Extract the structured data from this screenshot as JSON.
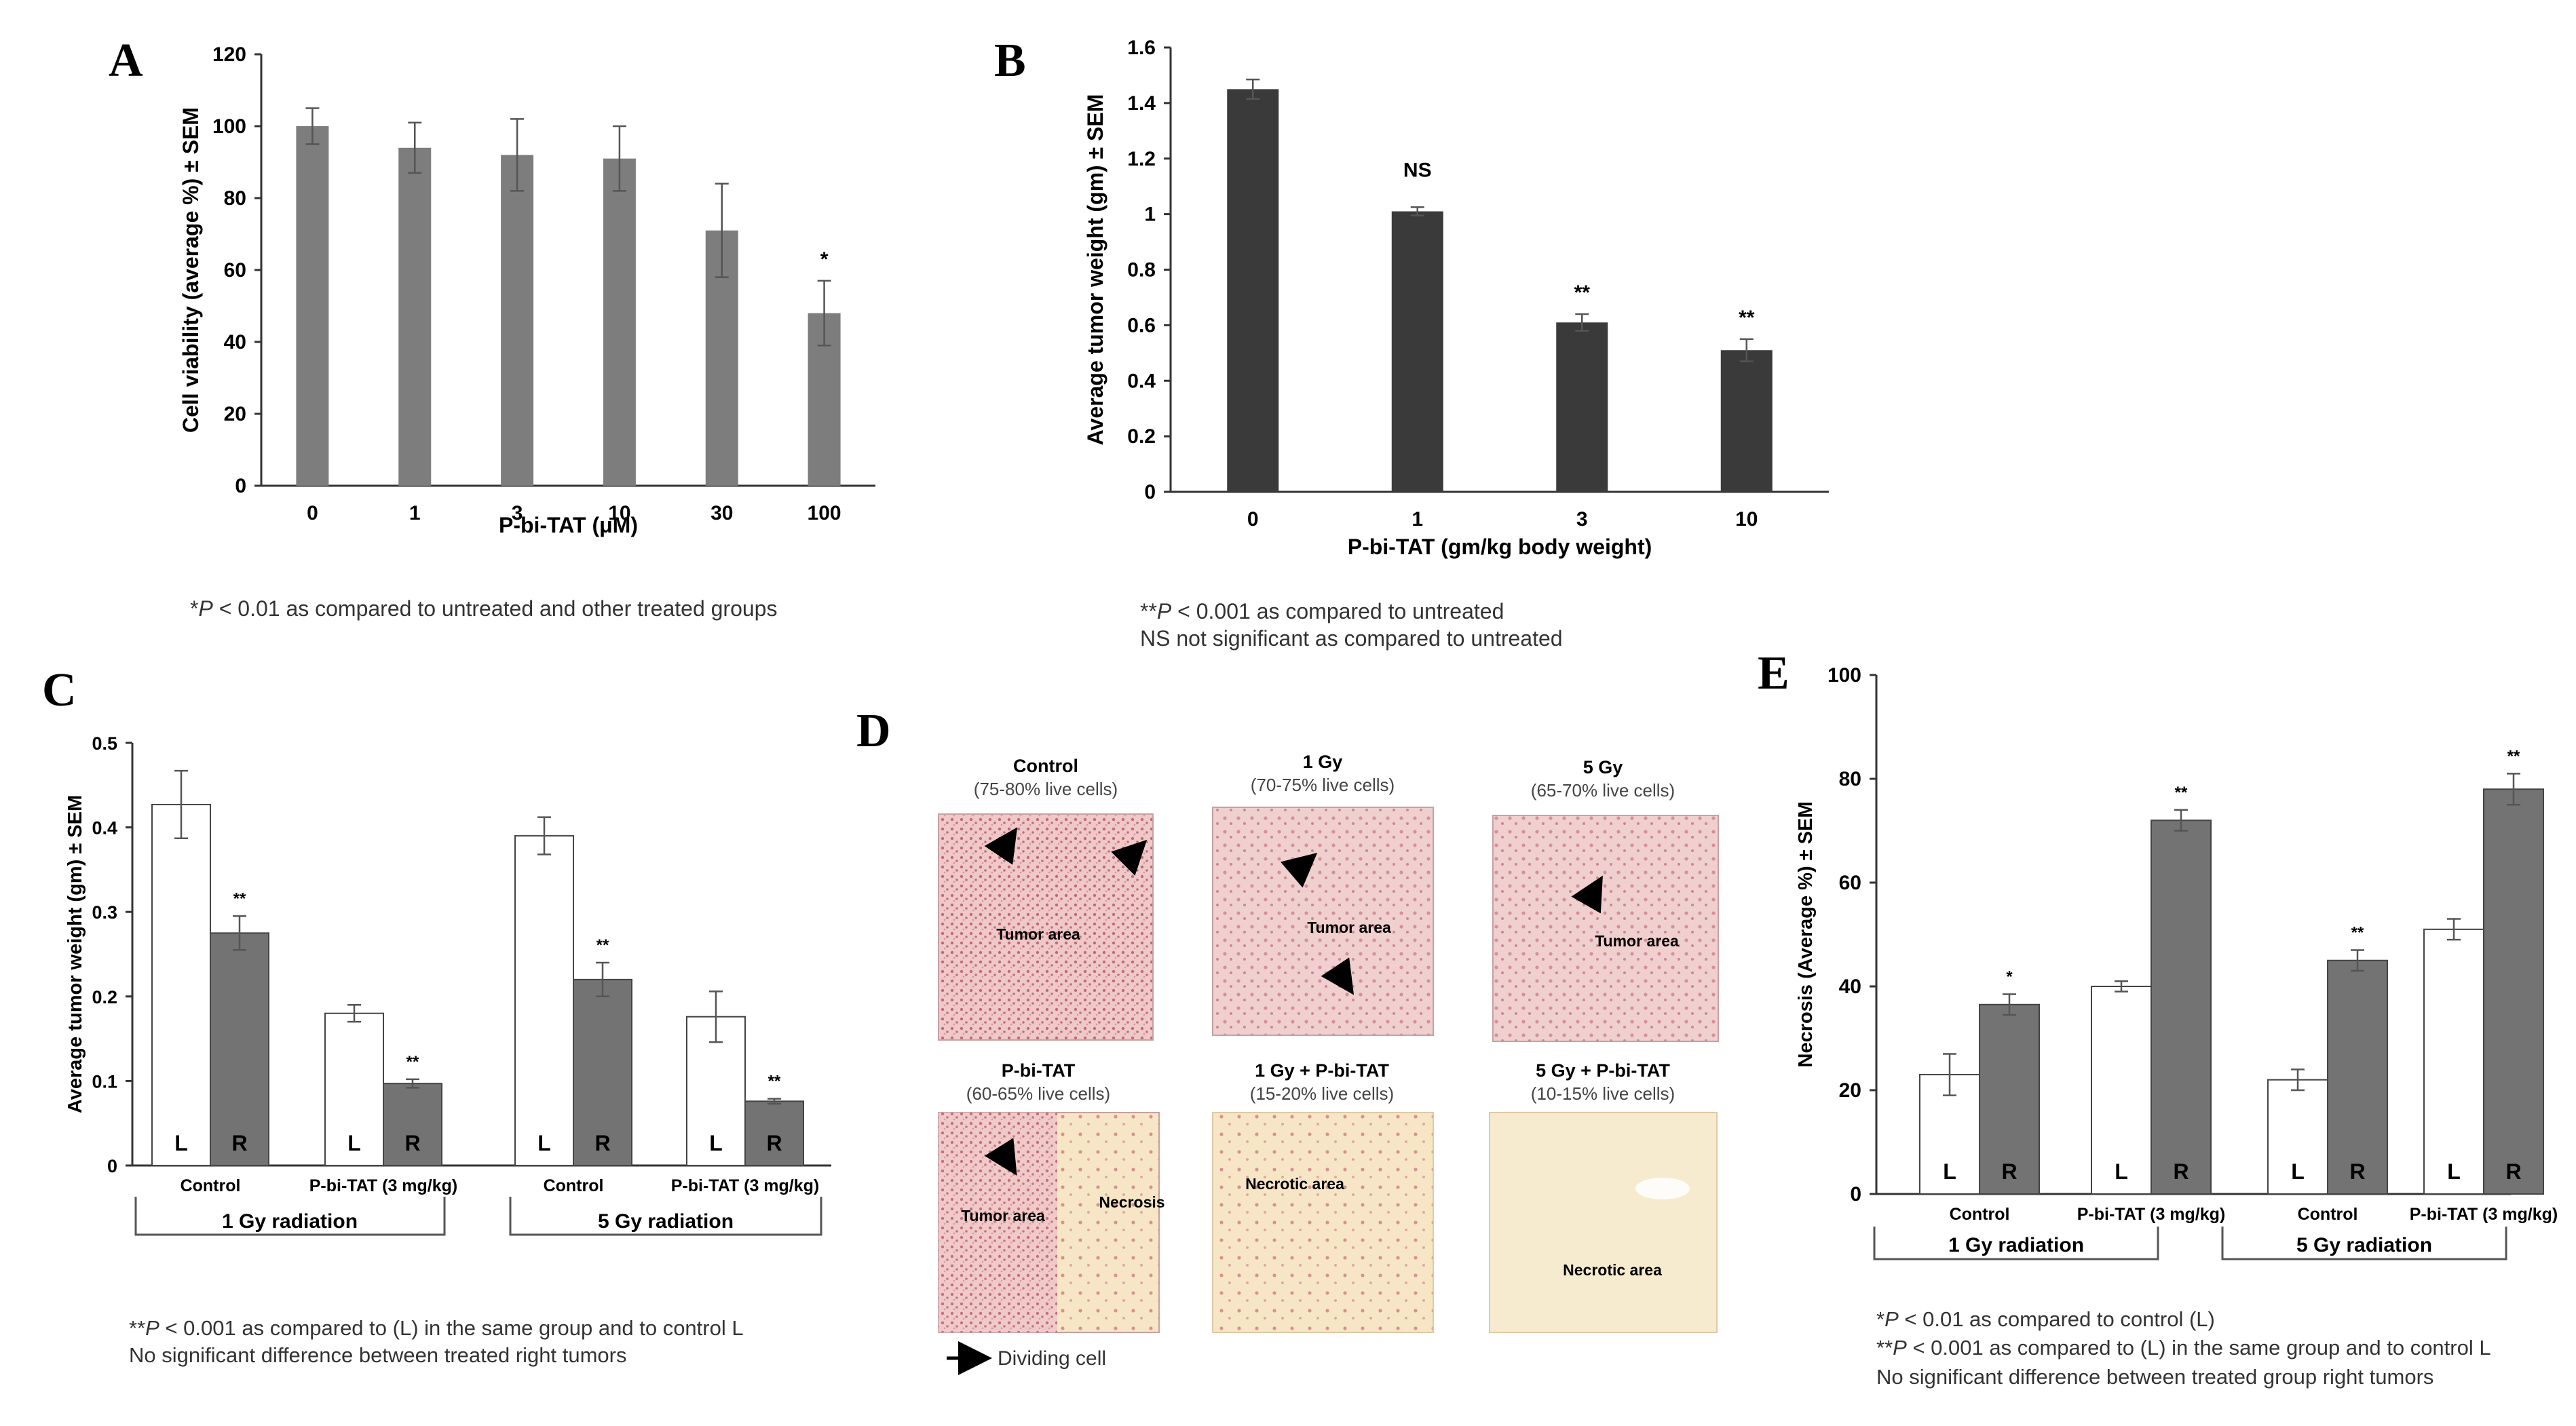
{
  "colors": {
    "panelA": "#7d7d7d",
    "panelB": "#3a3a3a",
    "left_bar": "#ffffff",
    "right_bar": "#737373",
    "axis": "#333333",
    "tissue_bg": "#efc9c9",
    "tissue_pale": "#f6e4c4"
  },
  "panels": {
    "A": {
      "letter": "A",
      "footnote_star": "*",
      "footnote_p": "P",
      "footnote_rest": " < 0.01 as compared to untreated and other treated groups"
    },
    "B": {
      "letter": "B",
      "footnote1_star": "**",
      "footnote1_p": "P",
      "footnote1_rest": " < 0.001 as compared to untreated",
      "footnote2": "NS not significant as compared to untreated"
    },
    "C": {
      "letter": "C",
      "group1": "1 Gy radiation",
      "group2": "5 Gy radiation",
      "footnote1_star": "**",
      "footnote1_p": "P",
      "footnote1_rest": " < 0.001 as compared to (L) in the same group and to control L",
      "footnote2": "No significant difference between treated right tumors"
    },
    "D": {
      "letter": "D",
      "legend": "Dividing cell",
      "images": [
        {
          "title": "Control",
          "subtitle": "(75-80% live cells)",
          "labels": [
            "Tumor area"
          ]
        },
        {
          "title": "1 Gy",
          "subtitle": "(70-75% live cells)",
          "labels": [
            "Tumor area"
          ]
        },
        {
          "title": "5 Gy",
          "subtitle": "(65-70% live cells)",
          "labels": [
            "Tumor area"
          ]
        },
        {
          "title": "P-bi-TAT",
          "subtitle": "(60-65% live cells)",
          "labels": [
            "Tumor area",
            "Necrosis"
          ]
        },
        {
          "title": "1 Gy + P-bi-TAT",
          "subtitle": "(15-20% live cells)",
          "labels": [
            "Necrotic area"
          ]
        },
        {
          "title": "5 Gy + P-bi-TAT",
          "subtitle": "(10-15% live cells)",
          "labels": [
            "Necrotic area"
          ]
        }
      ]
    },
    "E": {
      "letter": "E",
      "group1": "1 Gy radiation",
      "group2": "5 Gy radiation",
      "footnote1_star": "*",
      "footnote1_p": "P",
      "footnote1_rest": " < 0.01 as compared to control (L)",
      "footnote2_star": "**",
      "footnote2_p": "P",
      "footnote2_rest": " < 0.001 as compared to (L) in the same group and to control L",
      "footnote3": "No significant difference between treated group right tumors"
    }
  },
  "chart_data": [
    {
      "id": "A",
      "type": "bar",
      "xlabel": "P-bi-TAT (μM)",
      "ylabel": "Cell viability (average %) ± SEM",
      "categories": [
        "0",
        "1",
        "3",
        "10",
        "30",
        "100"
      ],
      "values": [
        100,
        94,
        92,
        91,
        71,
        48
      ],
      "errors": [
        5,
        7,
        10,
        9,
        13,
        9
      ],
      "annotations": [
        "",
        "",
        "",
        "",
        "",
        "*"
      ],
      "ylim": [
        0,
        120
      ],
      "yticks": [
        "0",
        "20",
        "40",
        "60",
        "80",
        "100",
        "120"
      ]
    },
    {
      "id": "B",
      "type": "bar",
      "xlabel": "P-bi-TAT (gm/kg body weight)",
      "ylabel": "Average tumor weight (gm) ± SEM",
      "categories": [
        "0",
        "1",
        "3",
        "10"
      ],
      "values": [
        1.45,
        1.01,
        0.61,
        0.51
      ],
      "errors": [
        0.035,
        0.015,
        0.03,
        0.04
      ],
      "annotations": [
        "",
        "NS",
        "**",
        "**"
      ],
      "ylim": [
        0,
        1.6
      ],
      "yticks": [
        "0",
        "0.2",
        "0.4",
        "0.6",
        "0.8",
        "1",
        "1.2",
        "1.4",
        "1.6"
      ]
    },
    {
      "id": "C",
      "type": "bar",
      "ylabel": "Average tumor weight (gm) ± SEM",
      "categories": [
        "Control",
        "P-bi-TAT (3 mg/kg)",
        "Control",
        "P-bi-TAT (3 mg/kg)"
      ],
      "series": [
        {
          "name": "L",
          "values": [
            0.427,
            0.18,
            0.39,
            0.176
          ],
          "errors": [
            0.04,
            0.01,
            0.022,
            0.03
          ],
          "annotations": [
            "",
            "",
            "",
            ""
          ]
        },
        {
          "name": "R",
          "values": [
            0.275,
            0.097,
            0.22,
            0.076
          ],
          "errors": [
            0.02,
            0.005,
            0.02,
            0.003
          ],
          "annotations": [
            "**",
            "**",
            "**",
            "**"
          ]
        }
      ],
      "ylim": [
        0,
        0.5
      ],
      "yticks": [
        "0",
        "0.1",
        "0.2",
        "0.3",
        "0.4",
        "0.5"
      ]
    },
    {
      "id": "E",
      "type": "bar",
      "ylabel": "Necrosis (Average %) ± SEM",
      "categories": [
        "Control",
        "P-bi-TAT (3 mg/kg)",
        "Control",
        "P-bi-TAT (3 mg/kg)"
      ],
      "series": [
        {
          "name": "L",
          "values": [
            23,
            40,
            22,
            51
          ],
          "errors": [
            4,
            1,
            2,
            2
          ],
          "annotations": [
            "",
            "",
            "",
            ""
          ]
        },
        {
          "name": "R",
          "values": [
            36.5,
            72,
            45,
            78
          ],
          "errors": [
            2,
            2,
            2,
            3
          ],
          "annotations": [
            "*",
            "**",
            "**",
            "**"
          ]
        }
      ],
      "ylim": [
        0,
        100
      ],
      "yticks": [
        "0",
        "20",
        "40",
        "60",
        "80",
        "100"
      ]
    }
  ]
}
